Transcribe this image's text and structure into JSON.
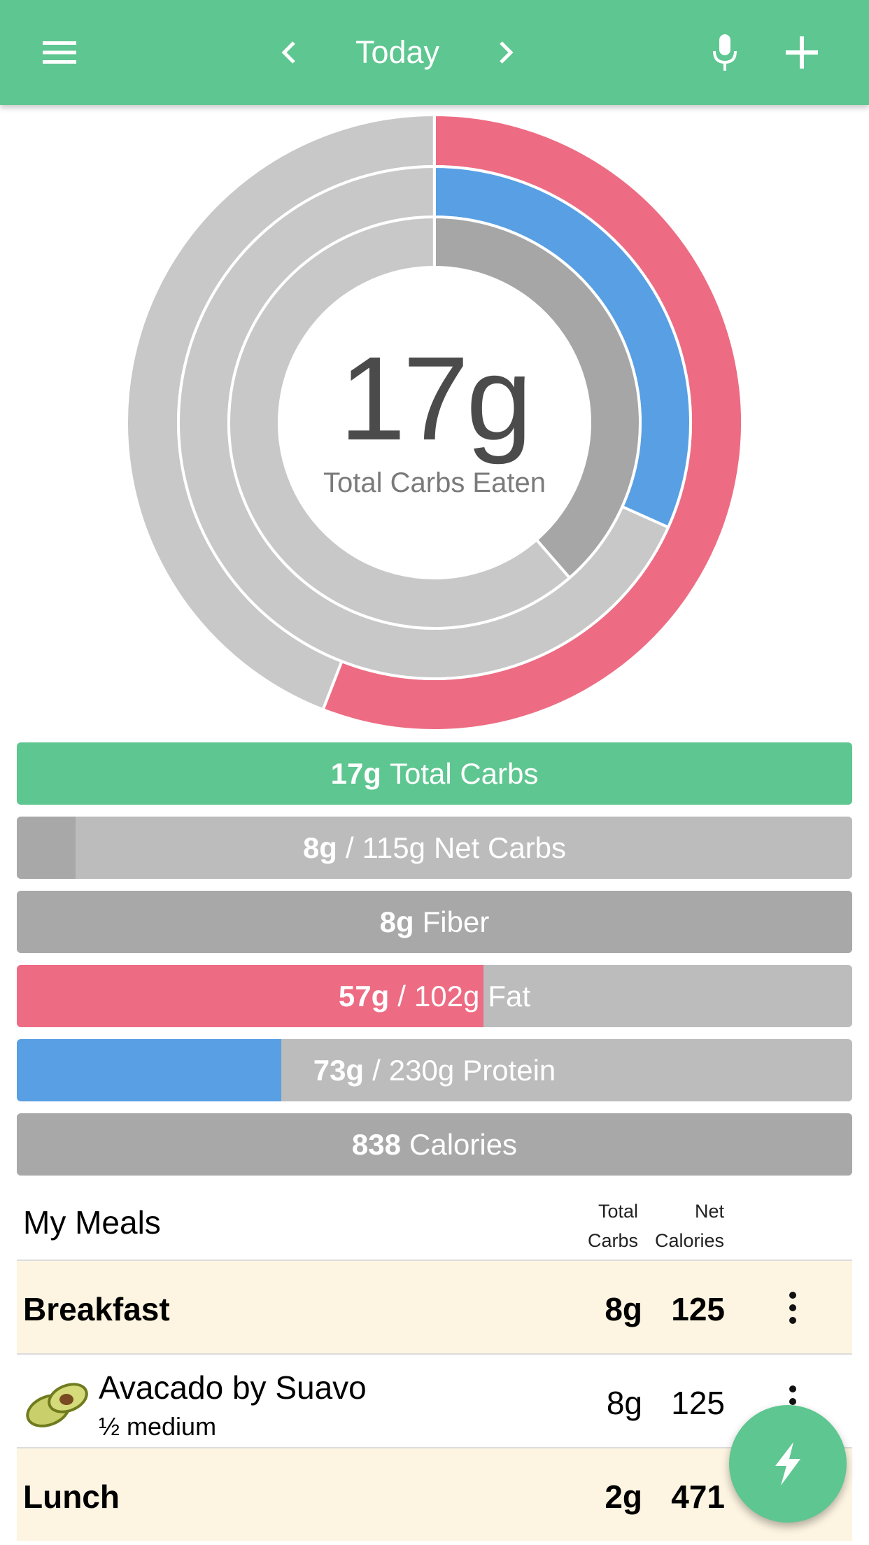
{
  "header": {
    "title": "Today",
    "menu_icon": "hamburger-menu-icon",
    "prev_icon": "chevron-left-icon",
    "next_icon": "chevron-right-icon",
    "mic_icon": "microphone-icon",
    "add_icon": "plus-icon",
    "color": "#5ec690"
  },
  "summary": {
    "center_value": "17g",
    "center_label": "Total Carbs Eaten",
    "rings": {
      "fat_fraction": 0.559,
      "protein_fraction": 0.317,
      "net_carbs_fraction": 0.07,
      "fiber_fraction": 0.386
    },
    "colors": {
      "fat": "#ed6c83",
      "protein": "#589fe4",
      "gray": "#c8c8c8",
      "dark_gray": "#a6a6a6",
      "green": "#5ec690"
    }
  },
  "bars": [
    {
      "id": "total-carbs",
      "value": "17g",
      "separator": "",
      "goal": "",
      "label": "Total Carbs",
      "fraction": 1.0,
      "fill_color": "#5ec690"
    },
    {
      "id": "net-carbs",
      "value": "8g",
      "separator": "/",
      "goal": "115g",
      "label": "Net Carbs",
      "fraction": 0.07,
      "fill_color": "#a8a8a8"
    },
    {
      "id": "fiber",
      "value": "8g",
      "separator": "",
      "goal": "",
      "label": "Fiber",
      "fraction": 1.0,
      "fill_color": "#a8a8a8"
    },
    {
      "id": "fat",
      "value": "57g",
      "separator": "/",
      "goal": "102g",
      "label": "Fat",
      "fraction": 0.559,
      "fill_color": "#ed6c83"
    },
    {
      "id": "protein",
      "value": "73g",
      "separator": "/",
      "goal": "230g",
      "label": "Protein",
      "fraction": 0.317,
      "fill_color": "#589fe4"
    },
    {
      "id": "calories",
      "value": "838",
      "separator": "",
      "goal": "",
      "label": "Calories",
      "fraction": 1.0,
      "fill_color": "#a8a8a8"
    }
  ],
  "meals": {
    "title": "My Meals",
    "col1_line1": "Total",
    "col1_line2": "Carbs",
    "col2_line1": "Net",
    "col2_line2": "Calories",
    "rows": [
      {
        "type": "meal",
        "name": "Breakfast",
        "carbs": "8g",
        "calories": "125"
      },
      {
        "type": "food",
        "name": "Avacado by Suavo",
        "portion": "½ medium",
        "carbs": "8g",
        "calories": "125",
        "icon": "avocado-icon"
      },
      {
        "type": "meal",
        "name": "Lunch",
        "carbs": "2g",
        "calories": "471"
      }
    ]
  },
  "fab": {
    "icon": "lightning-bolt-icon"
  }
}
